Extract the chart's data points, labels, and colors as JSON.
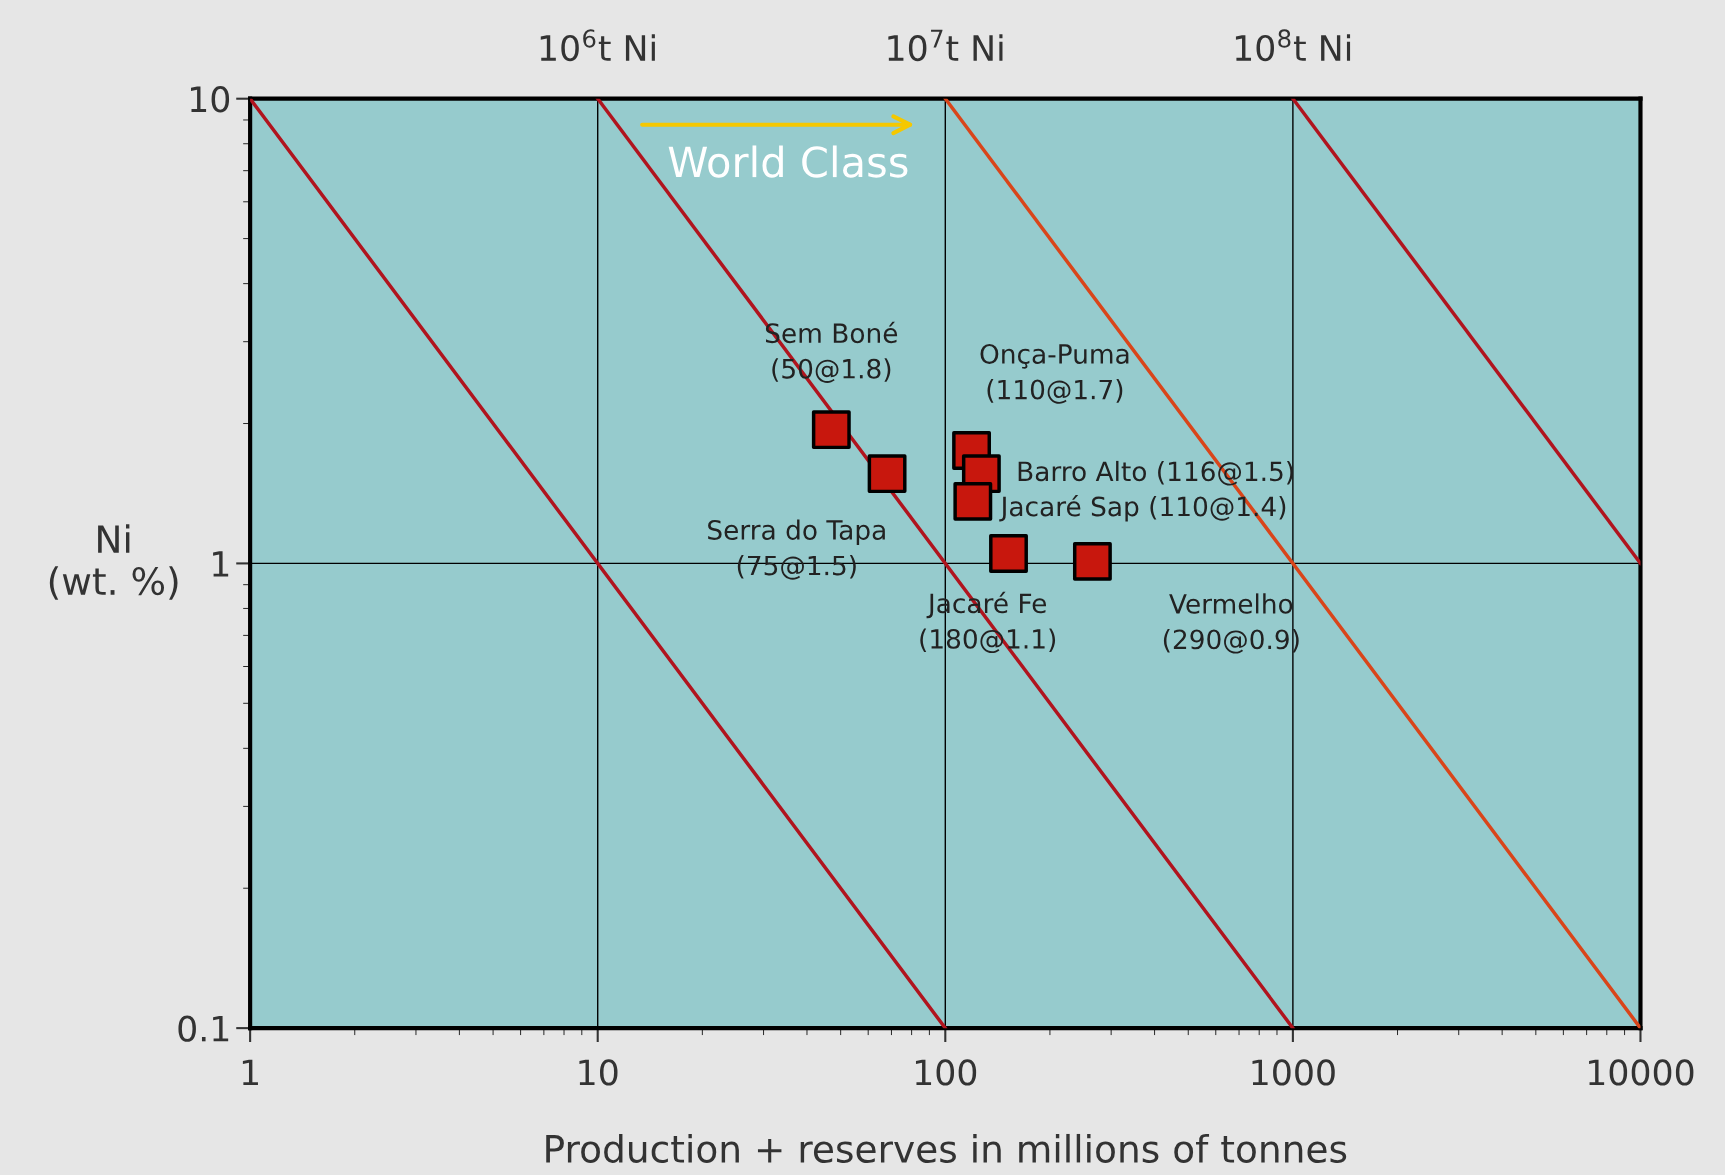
{
  "chart_data": {
    "type": "scatter",
    "xlabel": "Production + reserves in millions of tonnes",
    "ylabel": "Ni\n(wt. %)",
    "log": "xy",
    "grid": true,
    "xlim": [
      1,
      10000
    ],
    "xticks": [
      1,
      10,
      100,
      1000,
      10000
    ],
    "ylim": [
      0.1,
      10
    ],
    "yticks": [
      0.1,
      1,
      10
    ],
    "series": [
      {
        "color": "#c8170d",
        "marker": "square",
        "x": [
          47,
          68,
          119,
          127,
          120,
          152,
          265
        ],
        "values": [
          1.94,
          1.56,
          1.75,
          1.56,
          1.36,
          1.05,
          1.01
        ]
      },
      {
        "type": "line",
        "color": "#b0141e",
        "x": [
          1,
          100
        ],
        "values": [
          10,
          0.1
        ]
      },
      {
        "type": "line",
        "name": "10$^{6}$t Ni",
        "color": "#b0141e",
        "x": [
          10,
          1000
        ],
        "values": [
          10,
          0.1
        ]
      },
      {
        "type": "line",
        "name": "10$^{7}$t Ni",
        "color": "#d9451a",
        "x": [
          100,
          10000
        ],
        "values": [
          10,
          0.1
        ]
      },
      {
        "type": "line",
        "name": "10$^{8}$t Ni",
        "color": "#b0141e",
        "x": [
          1000,
          10000
        ],
        "values": [
          10,
          1
        ]
      }
    ],
    "annotations": [
      {
        "text": "Sem Boné\n(50@1.8)",
        "x": 47,
        "y": 1.94
      },
      {
        "text": "Serra do Tapa\n(75@1.5)",
        "x": 68,
        "y": 1.56
      },
      {
        "text": "Onça-Puma\n(110@1.7)",
        "x": 119,
        "y": 1.75
      },
      {
        "text": "Barro Alto (116@1.5)",
        "x": 127,
        "y": 1.56
      },
      {
        "text": "Jacaré Sap (110@1.4)",
        "x": 120,
        "y": 1.36
      },
      {
        "text": "Jacaré Fe\n(180@1.1)",
        "x": 152,
        "y": 1.05
      },
      {
        "text": "Vermelho\n(290@0.9)",
        "x": 265,
        "y": 1.01
      },
      "World Class"
    ]
  }
}
